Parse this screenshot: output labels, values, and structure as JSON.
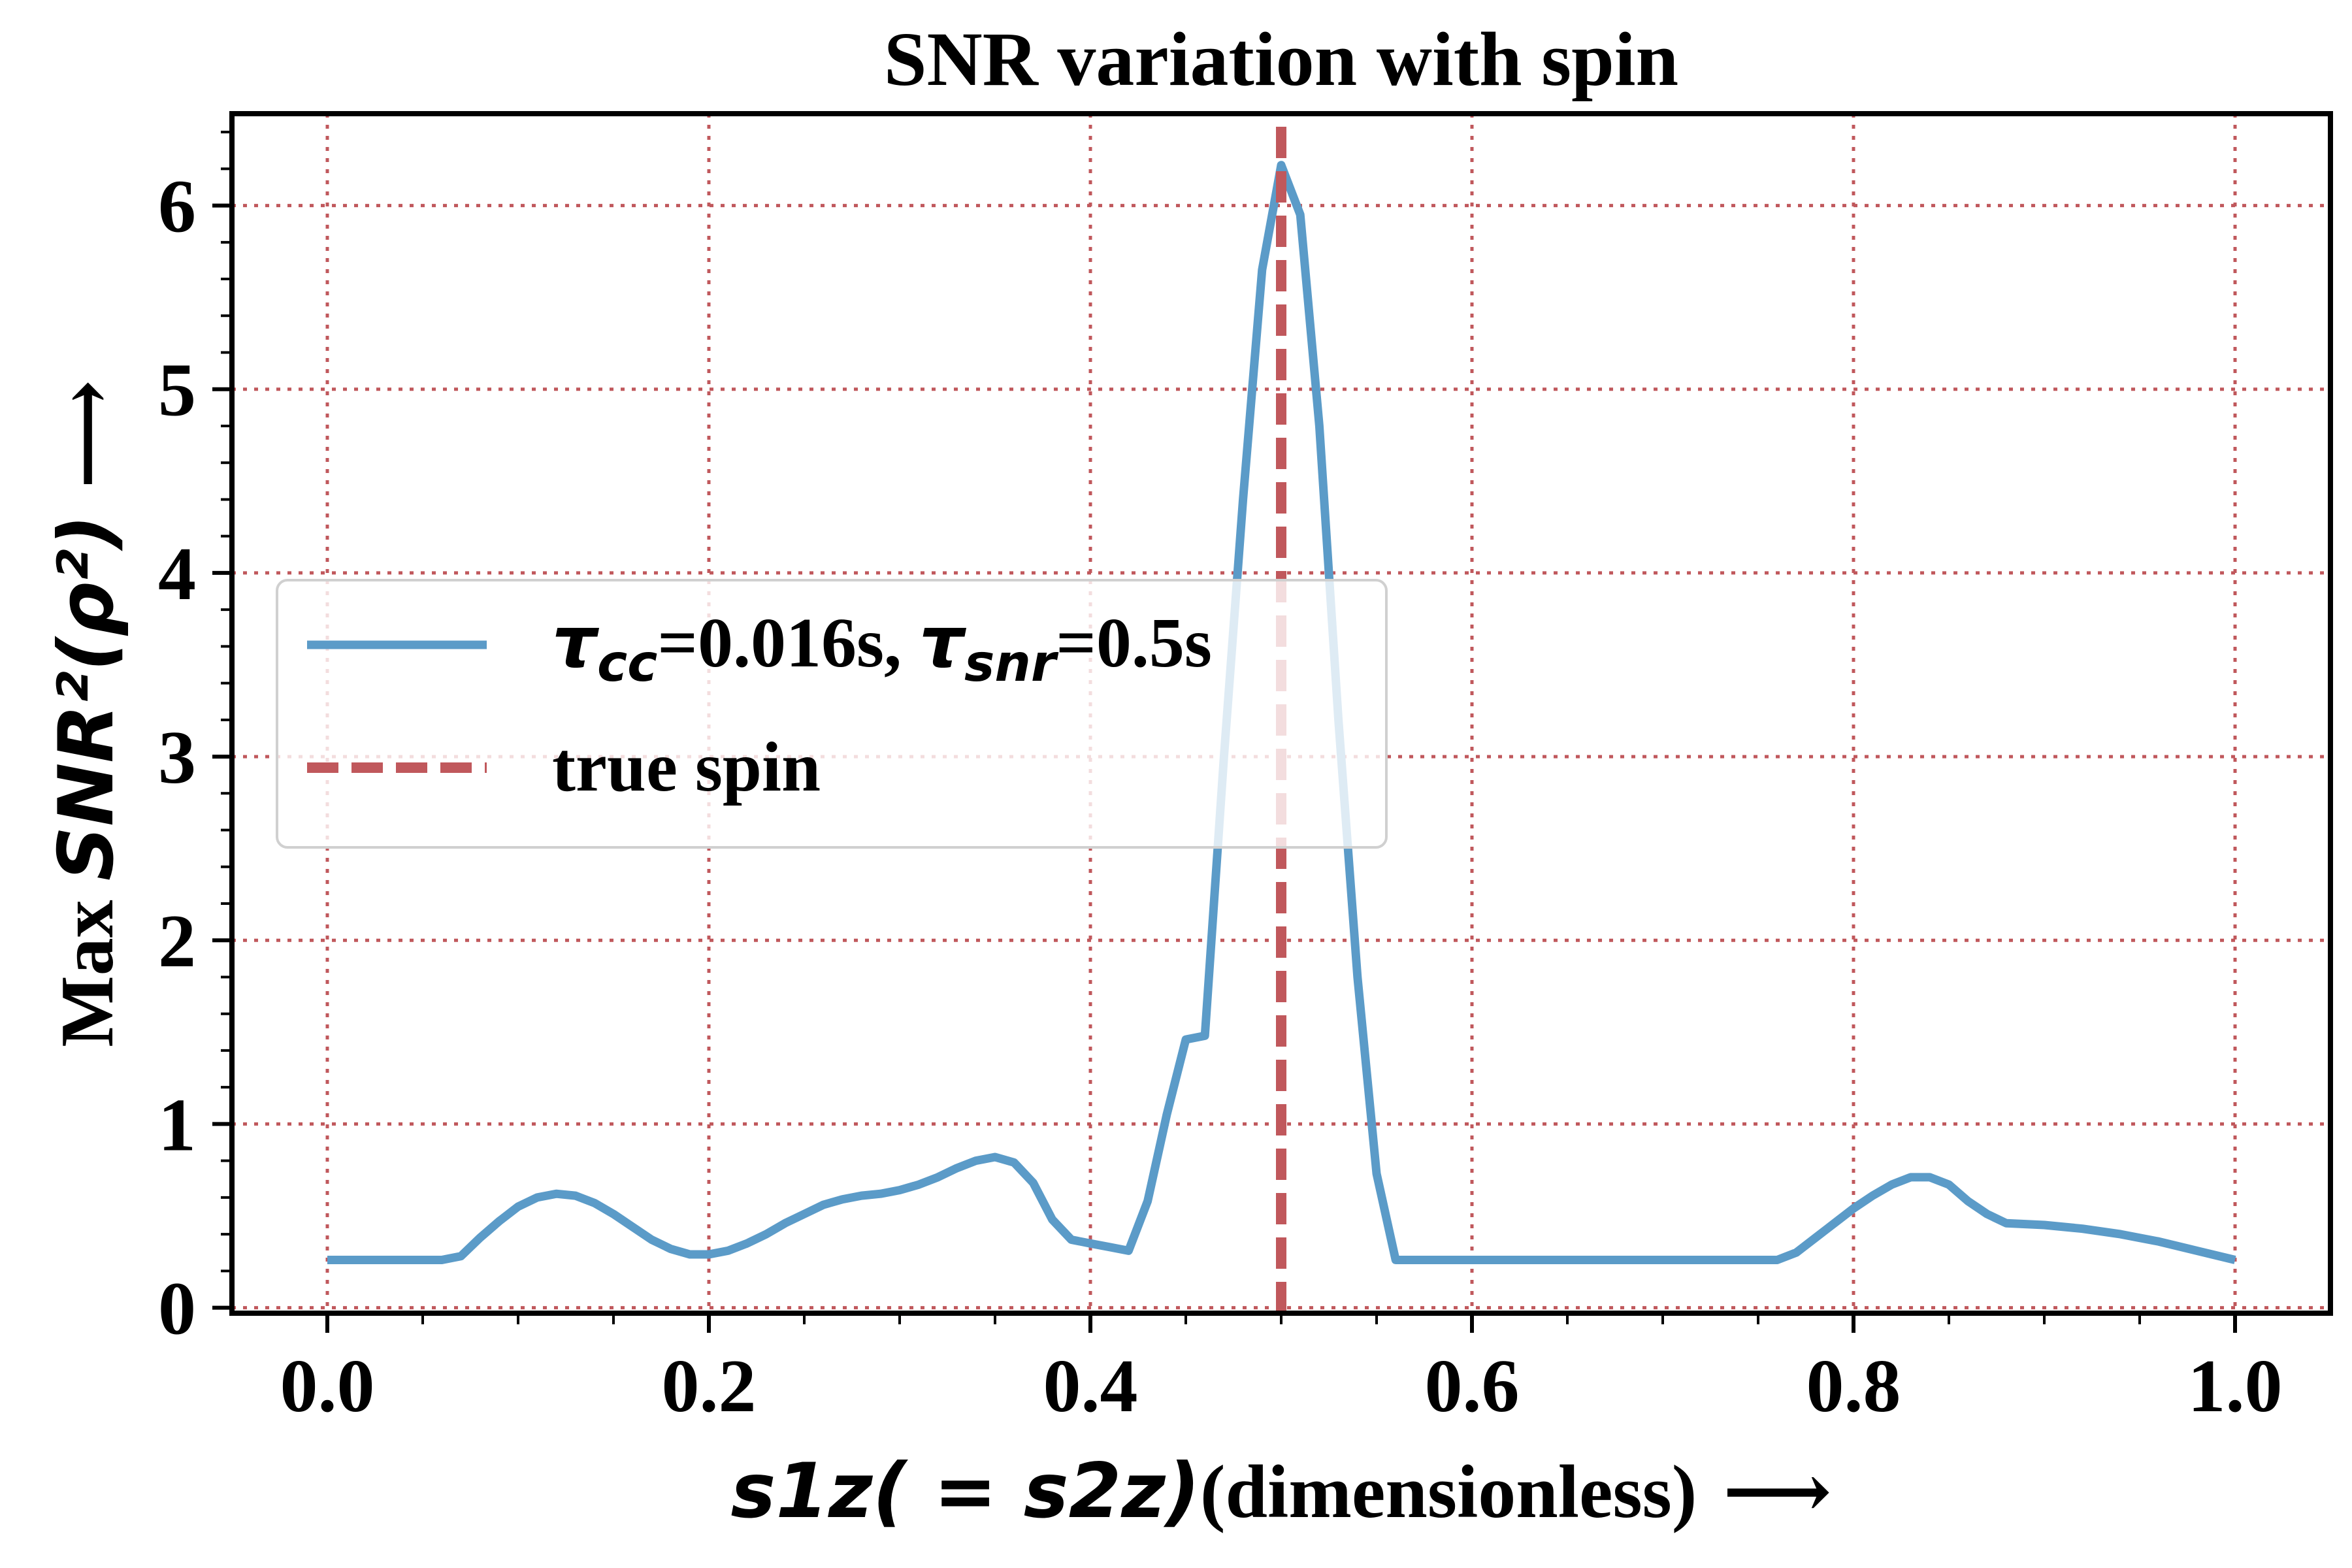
{
  "colors": {
    "line": "#5b9bc8",
    "true_spin": "#c0585c",
    "grid": "#c0585c",
    "axis": "#000000",
    "legend_border": "#d0d0d0"
  },
  "chart_data": {
    "type": "line",
    "title": "SNR variation with spin",
    "xlabel": {
      "math": "s1z( = s2z)",
      "text": "(dimensionless)",
      "arrow": "⟶"
    },
    "ylabel": {
      "text": "Max ",
      "math": "SNR²(ρ²)",
      "arrow": "⟶"
    },
    "xlim": [
      -0.05,
      1.05
    ],
    "ylim": [
      -0.03,
      6.5
    ],
    "xticks": [
      0.0,
      0.2,
      0.4,
      0.6,
      0.8,
      1.0
    ],
    "xtick_labels": [
      "0.0",
      "0.2",
      "0.4",
      "0.6",
      "0.8",
      "1.0"
    ],
    "yticks": [
      0,
      1,
      2,
      3,
      4,
      5,
      6
    ],
    "ytick_labels": [
      "0",
      "1",
      "2",
      "3",
      "4",
      "5",
      "6"
    ],
    "grid": true,
    "legend_position": "center-left",
    "series": [
      {
        "name": "τcc=0.016s, τsnr=0.5s",
        "legend_label": {
          "tau1": "τ",
          "sub1": "cc",
          "mid": "=0.016s, ",
          "tau2": "τ",
          "sub2": "snr",
          "end": "=0.5s"
        },
        "style": "solid",
        "x": [
          0.0,
          0.02,
          0.04,
          0.06,
          0.07,
          0.08,
          0.09,
          0.1,
          0.11,
          0.12,
          0.13,
          0.14,
          0.15,
          0.16,
          0.17,
          0.18,
          0.19,
          0.2,
          0.21,
          0.22,
          0.23,
          0.24,
          0.25,
          0.26,
          0.27,
          0.28,
          0.29,
          0.3,
          0.31,
          0.32,
          0.33,
          0.34,
          0.35,
          0.36,
          0.37,
          0.38,
          0.39,
          0.4,
          0.41,
          0.42,
          0.43,
          0.44,
          0.45,
          0.46,
          0.47,
          0.48,
          0.49,
          0.5,
          0.51,
          0.52,
          0.53,
          0.54,
          0.55,
          0.56,
          0.6,
          0.7,
          0.76,
          0.77,
          0.78,
          0.79,
          0.8,
          0.81,
          0.82,
          0.83,
          0.84,
          0.85,
          0.86,
          0.87,
          0.88,
          0.9,
          0.92,
          0.94,
          0.96,
          0.98,
          1.0
        ],
        "y": [
          0.26,
          0.26,
          0.26,
          0.26,
          0.28,
          0.38,
          0.47,
          0.55,
          0.6,
          0.62,
          0.61,
          0.57,
          0.51,
          0.44,
          0.37,
          0.32,
          0.29,
          0.29,
          0.31,
          0.35,
          0.4,
          0.46,
          0.51,
          0.56,
          0.59,
          0.61,
          0.62,
          0.64,
          0.67,
          0.71,
          0.76,
          0.8,
          0.82,
          0.79,
          0.68,
          0.48,
          0.37,
          0.35,
          0.33,
          0.31,
          0.58,
          1.05,
          1.46,
          1.48,
          3.0,
          4.4,
          5.65,
          6.22,
          5.95,
          4.8,
          3.2,
          1.8,
          0.73,
          0.26,
          0.26,
          0.26,
          0.26,
          0.3,
          0.38,
          0.46,
          0.54,
          0.61,
          0.67,
          0.71,
          0.71,
          0.67,
          0.58,
          0.51,
          0.46,
          0.45,
          0.43,
          0.4,
          0.36,
          0.31,
          0.26
        ]
      },
      {
        "name": "true spin",
        "style": "dashed",
        "x_value": 0.5
      }
    ]
  }
}
